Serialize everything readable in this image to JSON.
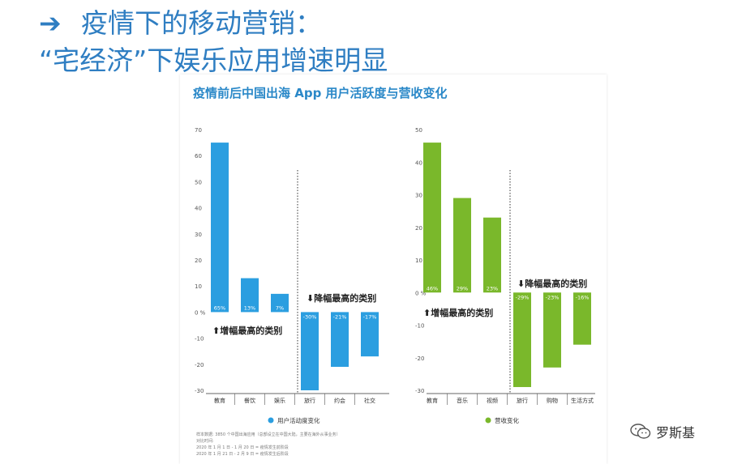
{
  "slide": {
    "arrow": "➔",
    "title_line1": "疫情下的移动营销：",
    "title_line2": "“宅经济”下娱乐应用增速明显",
    "colors": {
      "title": "#2f7ec2"
    }
  },
  "panel": {
    "title": "疫情前后中国出海 App 用户活跃度与营收变化",
    "footnotes": [
      "样本数据: 3850 个中国出海应用（总部设立在中国大陆，主要在海外从事业务）",
      "对比时间:",
      "2020 年 1 月 1 日 - 1 月 20 日 = 疫情发生前阶段",
      "2020 年 1 月 21 日 - 2 月 9 日 = 疫情发生后阶段"
    ]
  },
  "chart_data": [
    {
      "type": "bar",
      "categories": [
        "教育",
        "餐饮",
        "娱乐",
        "旅行",
        "约会",
        "社交"
      ],
      "values": [
        65,
        13,
        7,
        -30,
        -21,
        -17
      ],
      "value_labels": [
        "65%",
        "13%",
        "7%",
        "-30%",
        "-21%",
        "-17%"
      ],
      "ylim": [
        -30,
        70
      ],
      "yticks": [
        "70",
        "60",
        "50",
        "40",
        "30",
        "20",
        "10",
        "0 %",
        "-10",
        "-20",
        "-30"
      ],
      "ytick_values": [
        70,
        60,
        50,
        40,
        30,
        20,
        10,
        0,
        -10,
        -20,
        -30
      ],
      "annotations": {
        "increase": "增幅最高的类别",
        "decrease": "降幅最高的类别"
      },
      "legend": "用户活动度变化",
      "legend_position": "bottom",
      "color": "#2b9ee0",
      "divider_after_index": 2
    },
    {
      "type": "bar",
      "categories": [
        "教育",
        "音乐",
        "视频",
        "旅行",
        "购物",
        "生活方式"
      ],
      "values": [
        46,
        29,
        23,
        -29,
        -23,
        -16
      ],
      "value_labels": [
        "46%",
        "29%",
        "23%",
        "-29%",
        "-23%",
        "-16%"
      ],
      "ylim": [
        -30,
        50
      ],
      "yticks": [
        "50",
        "40",
        "30",
        "20",
        "10",
        "0 %",
        "-10",
        "-20",
        "-30"
      ],
      "ytick_values": [
        50,
        40,
        30,
        20,
        10,
        0,
        -10,
        -20,
        -30
      ],
      "annotations": {
        "increase": "增幅最高的类别",
        "decrease": "降幅最高的类别"
      },
      "legend": "营收变化",
      "legend_position": "bottom",
      "color": "#7ab82b",
      "divider_after_index": 2
    }
  ],
  "watermark": {
    "text": "罗斯基",
    "icon": "wechat-icon"
  }
}
